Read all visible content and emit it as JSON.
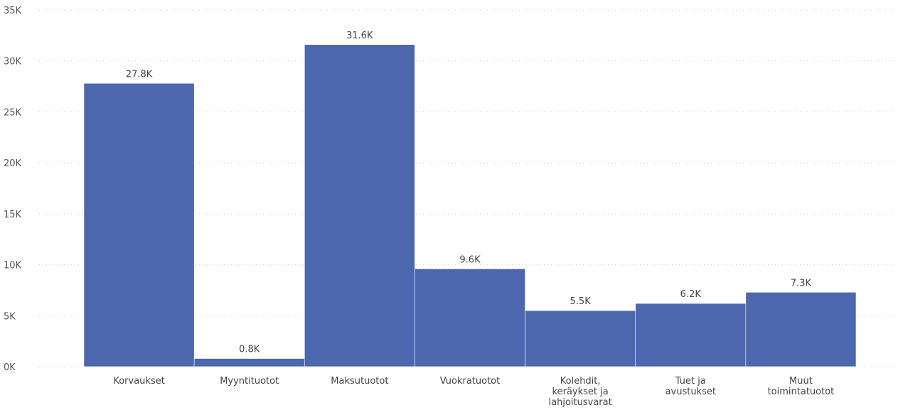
{
  "chart_data": {
    "type": "bar",
    "title": "",
    "xlabel": "",
    "ylabel": "",
    "categories": [
      [
        "Korvaukset"
      ],
      [
        "Myyntituotot"
      ],
      [
        "Maksutuotot"
      ],
      [
        "Vuokratuotot"
      ],
      [
        "Kolehdit,",
        "keräykset ja",
        "lahjoitusvarat"
      ],
      [
        "Tuet ja",
        "avustukset"
      ],
      [
        "Muut",
        "toimintatuotot"
      ]
    ],
    "values": [
      27800,
      800,
      31600,
      9600,
      5500,
      6200,
      7300
    ],
    "data_labels": [
      "27.8K",
      "0.8K",
      "31.6K",
      "9.6K",
      "5.5K",
      "6.2K",
      "7.3K"
    ],
    "ylim": [
      0,
      35000
    ],
    "yticks": [
      0,
      5000,
      10000,
      15000,
      20000,
      25000,
      30000,
      35000
    ],
    "ytick_labels": [
      "0K",
      "5K",
      "10K",
      "15K",
      "20K",
      "25K",
      "30K",
      "35K"
    ],
    "grid": true,
    "legend": "none",
    "bar_color": "#4c67ad"
  }
}
